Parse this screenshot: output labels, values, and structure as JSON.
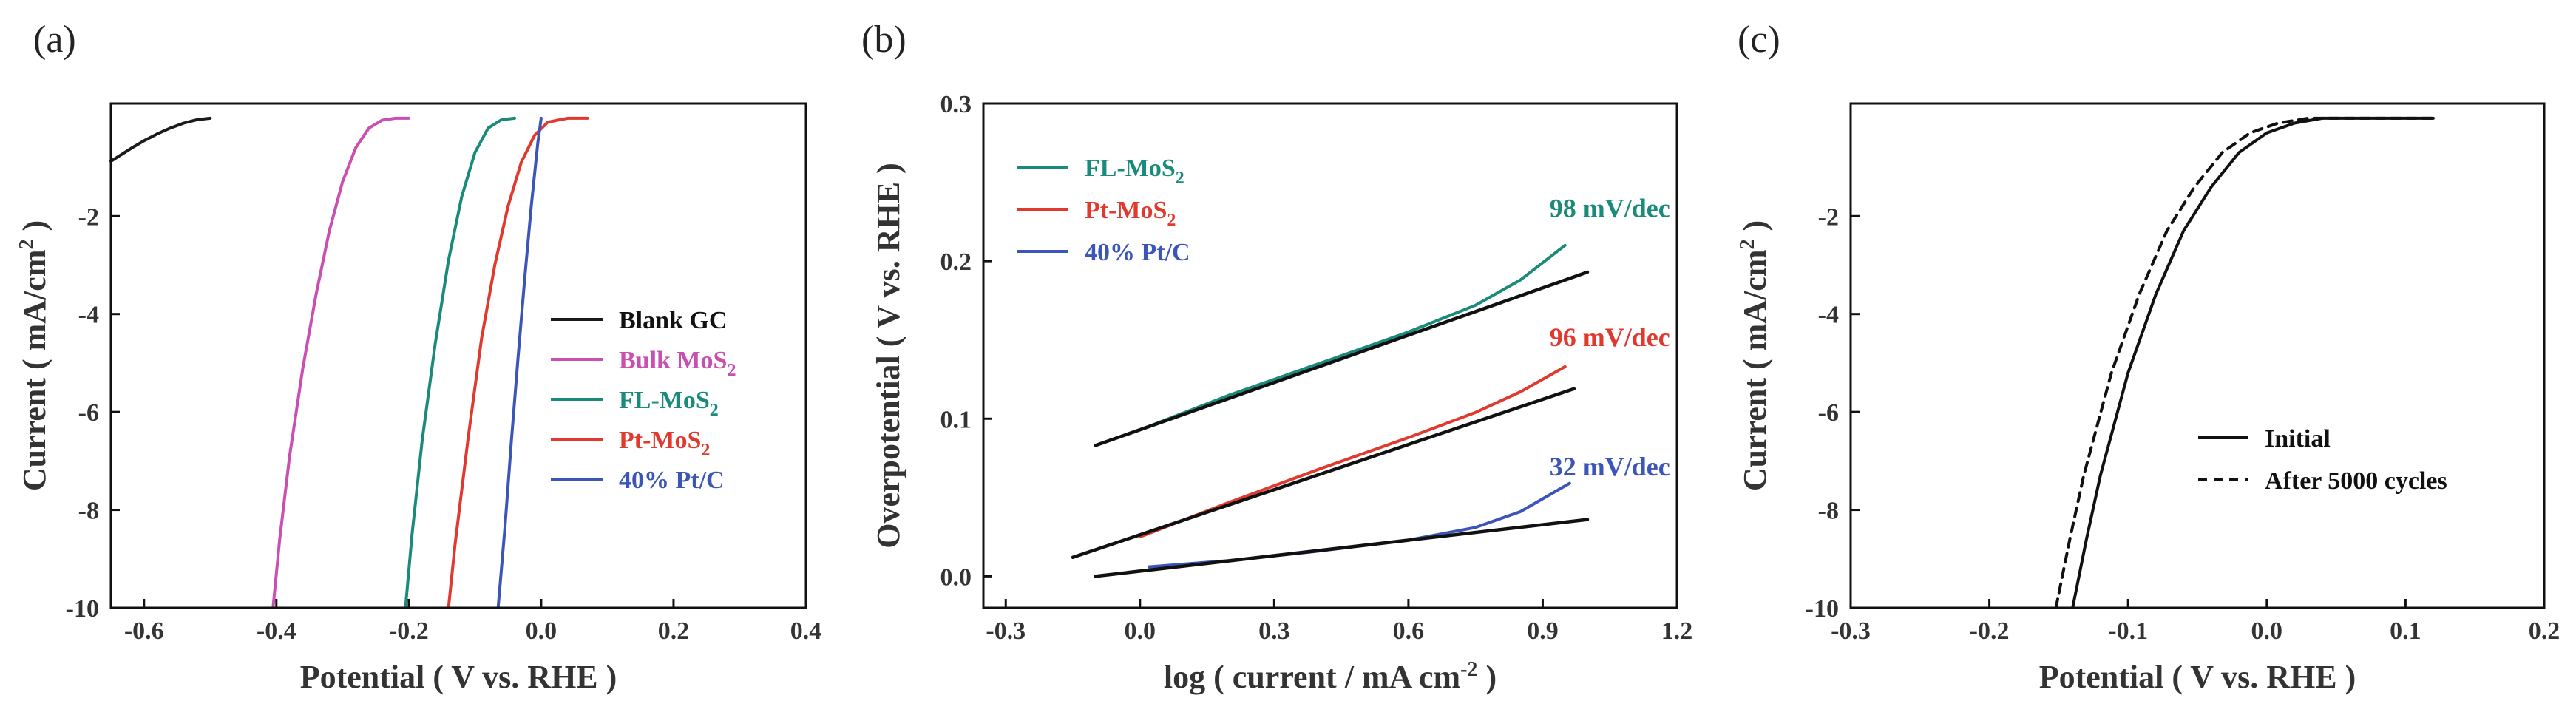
{
  "chart_data": [
    {
      "panel": "(a)",
      "type": "line",
      "xlabel": "Potential ( V vs. RHE )",
      "ylabel": "Current ( mA/cm",
      "ylabel_sup": "2",
      "ylabel_end": " )",
      "xlim": [
        -0.65,
        0.4
      ],
      "ylim": [
        -10,
        0.3
      ],
      "xticks": [
        -0.6,
        -0.4,
        -0.2,
        0.0,
        0.2,
        0.4
      ],
      "xtick_labels": [
        "-0.6",
        "-0.4",
        "-0.2",
        "0.0",
        "0.2",
        "0.4"
      ],
      "yticks": [
        -10,
        -8,
        -6,
        -4,
        -2
      ],
      "ytick_labels": [
        "-10",
        "-8",
        "-6",
        "-4",
        "-2"
      ],
      "legend_position": "bottom-right",
      "series": [
        {
          "name": "Blank GC",
          "label": "Blank GC",
          "sub": "",
          "color": "#1a1a1a",
          "x": [
            -0.65,
            -0.62,
            -0.6,
            -0.58,
            -0.56,
            -0.54,
            -0.52,
            -0.5
          ],
          "y": [
            -0.88,
            -0.62,
            -0.46,
            -0.32,
            -0.2,
            -0.1,
            -0.03,
            0.0
          ]
        },
        {
          "name": "Bulk MoS2",
          "label": "Bulk MoS",
          "sub": "2",
          "color": "#c94fb3",
          "x": [
            -0.405,
            -0.395,
            -0.38,
            -0.36,
            -0.34,
            -0.32,
            -0.3,
            -0.28,
            -0.26,
            -0.24,
            -0.22,
            -0.2
          ],
          "y": [
            -10,
            -8.6,
            -6.9,
            -5.1,
            -3.6,
            -2.3,
            -1.3,
            -0.6,
            -0.2,
            -0.04,
            0.0,
            0.0
          ]
        },
        {
          "name": "FL-MoS2",
          "label": "FL-MoS",
          "sub": "2",
          "color": "#1a8a7a",
          "x": [
            -0.205,
            -0.195,
            -0.18,
            -0.16,
            -0.14,
            -0.12,
            -0.1,
            -0.08,
            -0.06,
            -0.04
          ],
          "y": [
            -10,
            -8.5,
            -6.6,
            -4.6,
            -2.9,
            -1.6,
            -0.7,
            -0.2,
            -0.03,
            0.0
          ]
        },
        {
          "name": "Pt-MoS2",
          "label": "Pt-MoS",
          "sub": "2",
          "color": "#e03a2e",
          "x": [
            -0.14,
            -0.13,
            -0.11,
            -0.09,
            -0.07,
            -0.05,
            -0.03,
            -0.01,
            0.01,
            0.04,
            0.07
          ],
          "y": [
            -10,
            -8.7,
            -6.5,
            -4.5,
            -3.0,
            -1.8,
            -0.9,
            -0.35,
            -0.08,
            0.0,
            0.0
          ]
        },
        {
          "name": "40% Pt/C",
          "label": "40% Pt/C",
          "sub": "",
          "color": "#3b55b8",
          "x": [
            -0.065,
            -0.055,
            -0.045,
            -0.035,
            -0.025,
            -0.015,
            -0.005,
            0.0
          ],
          "y": [
            -10,
            -8.4,
            -6.6,
            -4.9,
            -3.3,
            -1.8,
            -0.5,
            0.0
          ]
        }
      ]
    },
    {
      "panel": "(b)",
      "type": "line",
      "xlabel": "log ( current / mA cm",
      "xlabel_sup": "-2",
      "xlabel_end": " )",
      "ylabel": "Overpotential ( V vs. RHE )",
      "xlim": [
        -0.35,
        1.2
      ],
      "ylim": [
        -0.02,
        0.3
      ],
      "xticks": [
        -0.3,
        0.0,
        0.3,
        0.6,
        0.9,
        1.2
      ],
      "xtick_labels": [
        "-0.3",
        "0.0",
        "0.3",
        "0.6",
        "0.9",
        "1.2"
      ],
      "yticks": [
        0.0,
        0.1,
        0.2,
        0.3
      ],
      "ytick_labels": [
        "0.0",
        "0.1",
        "0.2",
        "0.3"
      ],
      "legend_position": "top-left",
      "series": [
        {
          "name": "FL-MoS2",
          "label": "FL-MoS",
          "sub": "2",
          "color": "#1a8a7a",
          "x": [
            0.0,
            0.2,
            0.4,
            0.6,
            0.75,
            0.85,
            0.95
          ],
          "y": [
            0.093,
            0.115,
            0.135,
            0.155,
            0.172,
            0.188,
            0.21
          ]
        },
        {
          "name": "Pt-MoS2",
          "label": "Pt-MoS",
          "sub": "2",
          "color": "#e03a2e",
          "x": [
            0.0,
            0.2,
            0.4,
            0.6,
            0.75,
            0.85,
            0.95
          ],
          "y": [
            0.025,
            0.047,
            0.068,
            0.088,
            0.104,
            0.117,
            0.133
          ]
        },
        {
          "name": "40% Pt/C",
          "label": "40% Pt/C",
          "sub": "",
          "color": "#3b55b8",
          "x": [
            0.02,
            0.2,
            0.4,
            0.6,
            0.75,
            0.85,
            0.96
          ],
          "y": [
            0.006,
            0.01,
            0.016,
            0.023,
            0.031,
            0.041,
            0.059
          ]
        }
      ],
      "fits": [
        {
          "x": [
            -0.1,
            1.0
          ],
          "y": [
            0.083,
            0.193
          ],
          "color": "#111111"
        },
        {
          "x": [
            -0.15,
            0.97
          ],
          "y": [
            0.012,
            0.119
          ],
          "color": "#111111"
        },
        {
          "x": [
            -0.1,
            1.0
          ],
          "y": [
            0.0,
            0.036
          ],
          "color": "#111111"
        }
      ],
      "annotations": [
        {
          "text": "98 mV/dec",
          "x": 1.05,
          "y": 0.228,
          "color": "#1a8a7a"
        },
        {
          "text": "96 mV/dec",
          "x": 1.05,
          "y": 0.146,
          "color": "#e03a2e"
        },
        {
          "text": "32 mV/dec",
          "x": 1.05,
          "y": 0.064,
          "color": "#3b55b8"
        }
      ]
    },
    {
      "panel": "(c)",
      "type": "line",
      "xlabel": "Potential ( V vs. RHE )",
      "ylabel": "Current ( mA/cm",
      "ylabel_sup": "2",
      "ylabel_end": " )",
      "xlim": [
        -0.3,
        0.2
      ],
      "ylim": [
        -10,
        0.3
      ],
      "xticks": [
        -0.3,
        -0.2,
        -0.1,
        0.0,
        0.1,
        0.2
      ],
      "xtick_labels": [
        "-0.3",
        "-0.2",
        "-0.1",
        "0.0",
        "0.1",
        "0.2"
      ],
      "yticks": [
        -10,
        -8,
        -6,
        -4,
        -2
      ],
      "ytick_labels": [
        "-10",
        "-8",
        "-6",
        "-4",
        "-2"
      ],
      "legend_position": "center-right",
      "series": [
        {
          "name": "Initial",
          "label": "Initial",
          "sub": "",
          "color": "#111111",
          "dashed": false,
          "x": [
            -0.14,
            -0.13,
            -0.12,
            -0.1,
            -0.08,
            -0.06,
            -0.04,
            -0.02,
            0.0,
            0.02,
            0.04,
            0.06,
            0.08,
            0.12
          ],
          "y": [
            -10,
            -8.6,
            -7.3,
            -5.2,
            -3.6,
            -2.3,
            -1.4,
            -0.7,
            -0.3,
            -0.1,
            0.0,
            0.0,
            0.0,
            0.0
          ]
        },
        {
          "name": "After 5000 cycles",
          "label": "After 5000 cycles",
          "sub": "",
          "color": "#111111",
          "dashed": true,
          "x": [
            -0.152,
            -0.142,
            -0.132,
            -0.112,
            -0.092,
            -0.072,
            -0.052,
            -0.032,
            -0.012,
            0.008,
            0.03,
            0.05,
            0.08,
            0.12
          ],
          "y": [
            -10,
            -8.6,
            -7.3,
            -5.2,
            -3.6,
            -2.3,
            -1.4,
            -0.7,
            -0.3,
            -0.1,
            0.0,
            0.0,
            0.0,
            0.0
          ]
        }
      ]
    }
  ]
}
